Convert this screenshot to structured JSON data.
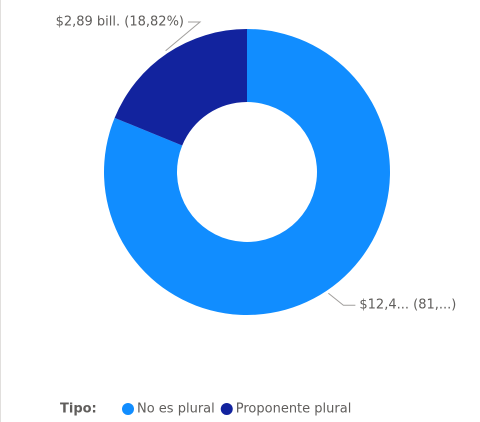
{
  "chart_data": {
    "type": "donut",
    "categories": [
      "No es plural",
      "Proponente plural"
    ],
    "values": [
      81.18,
      18.82
    ],
    "value_labels": [
      "$12,4... (81,...)",
      "$2,89 bill. (18,82%)"
    ],
    "colors": [
      "#118DFF",
      "#12239E"
    ],
    "legend_title": "Tipo:",
    "legend": "bottom"
  }
}
